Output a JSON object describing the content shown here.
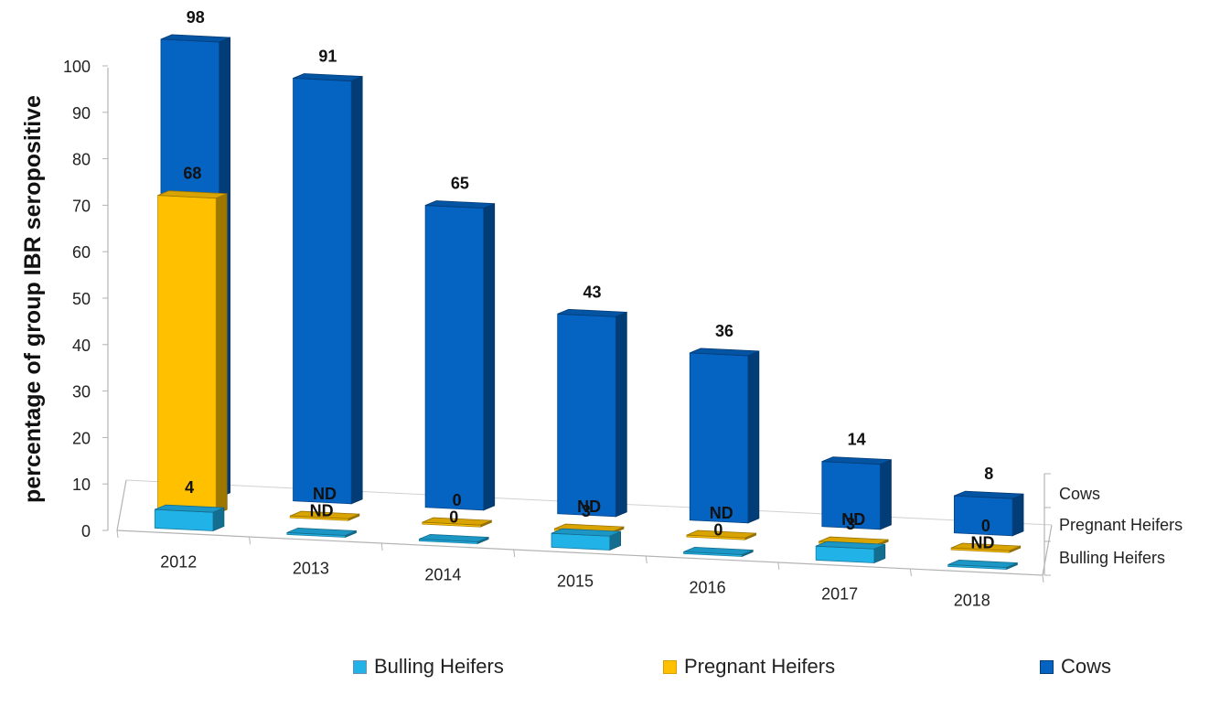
{
  "chart_data": {
    "type": "bar",
    "style": "3d-clustered-depth",
    "ylabel": "percentage of group IBR seropositive",
    "ylim": [
      0,
      100
    ],
    "yticks": [
      0,
      10,
      20,
      30,
      40,
      50,
      60,
      70,
      80,
      90,
      100
    ],
    "categories": [
      "2012",
      "2013",
      "2014",
      "2015",
      "2016",
      "2017",
      "2018"
    ],
    "depth_labels": [
      "Bulling Heifers",
      "Pregnant Heifers",
      "Cows"
    ],
    "series": [
      {
        "name": "Bulling Heifers",
        "color": "#21b2e8",
        "values": [
          4,
          0,
          0,
          3,
          0,
          3,
          0
        ],
        "labels": [
          "4",
          "ND",
          "0",
          "3",
          "0",
          "3",
          "ND"
        ]
      },
      {
        "name": "Pregnant Heifers",
        "color": "#ffc000",
        "values": [
          68,
          0,
          0,
          0,
          0,
          0,
          0
        ],
        "labels": [
          "68",
          "ND",
          "0",
          "ND",
          "ND",
          "ND",
          "0"
        ]
      },
      {
        "name": "Cows",
        "color": "#0563c1",
        "values": [
          98,
          91,
          65,
          43,
          36,
          14,
          8
        ],
        "labels": [
          "98",
          "91",
          "65",
          "43",
          "36",
          "14",
          "8"
        ]
      }
    ],
    "legend_position": "bottom",
    "grid": false
  }
}
